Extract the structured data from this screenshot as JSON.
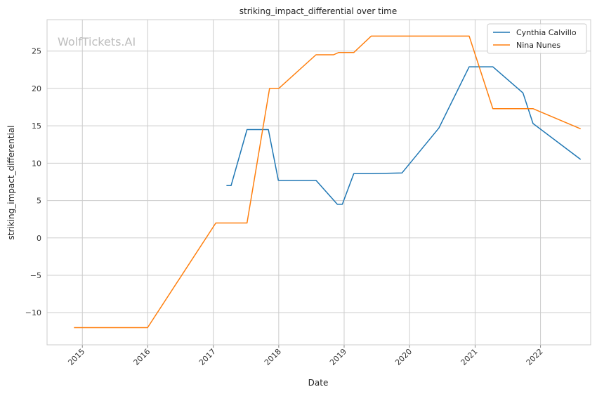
{
  "chart_data": {
    "type": "line",
    "title": "striking_impact_differential over time",
    "xlabel": "Date",
    "ylabel": "striking_impact_differential",
    "watermark": "WolfTickets.AI",
    "x_tick_labels": [
      "2015",
      "2016",
      "2017",
      "2018",
      "2019",
      "2020",
      "2021",
      "2022"
    ],
    "y_ticks": [
      -10,
      -5,
      0,
      5,
      10,
      15,
      20,
      25
    ],
    "y_tick_labels": [
      "−10",
      "−5",
      "0",
      "5",
      "10",
      "15",
      "20",
      "25"
    ],
    "xlim": [
      "2014-06-18",
      "2022-10-08"
    ],
    "ylim": [
      -14.3,
      29.2
    ],
    "grid": true,
    "legend_position": "top-right",
    "series": [
      {
        "name": "Cynthia Calvillo",
        "color": "#1f77b4",
        "points": [
          [
            "2017-03-15",
            7.0
          ],
          [
            "2017-04-10",
            7.0
          ],
          [
            "2017-07-08",
            14.5
          ],
          [
            "2017-11-04",
            14.5
          ],
          [
            "2017-12-30",
            7.7
          ],
          [
            "2018-07-28",
            7.7
          ],
          [
            "2018-11-24",
            4.5
          ],
          [
            "2018-12-22",
            4.5
          ],
          [
            "2019-02-24",
            8.6
          ],
          [
            "2019-06-01",
            8.6
          ],
          [
            "2019-11-20",
            8.7
          ],
          [
            "2020-06-13",
            14.7
          ],
          [
            "2020-11-29",
            22.9
          ],
          [
            "2021-04-10",
            22.9
          ],
          [
            "2021-09-25",
            19.4
          ],
          [
            "2021-11-20",
            15.3
          ],
          [
            "2022-08-13",
            10.5
          ]
        ]
      },
      {
        "name": "Nina Nunes",
        "color": "#ff7f0e",
        "points": [
          [
            "2014-11-15",
            -12.0
          ],
          [
            "2015-12-31",
            -12.0
          ],
          [
            "2017-01-15",
            2.0
          ],
          [
            "2017-07-08",
            2.0
          ],
          [
            "2017-11-11",
            20.0
          ],
          [
            "2018-01-01",
            20.0
          ],
          [
            "2018-07-28",
            24.5
          ],
          [
            "2018-11-03",
            24.5
          ],
          [
            "2018-12-01",
            24.8
          ],
          [
            "2019-02-24",
            24.8
          ],
          [
            "2019-06-01",
            27.0
          ],
          [
            "2020-11-29",
            27.0
          ],
          [
            "2021-04-10",
            17.3
          ],
          [
            "2021-11-20",
            17.3
          ],
          [
            "2022-08-13",
            14.6
          ]
        ]
      }
    ]
  }
}
